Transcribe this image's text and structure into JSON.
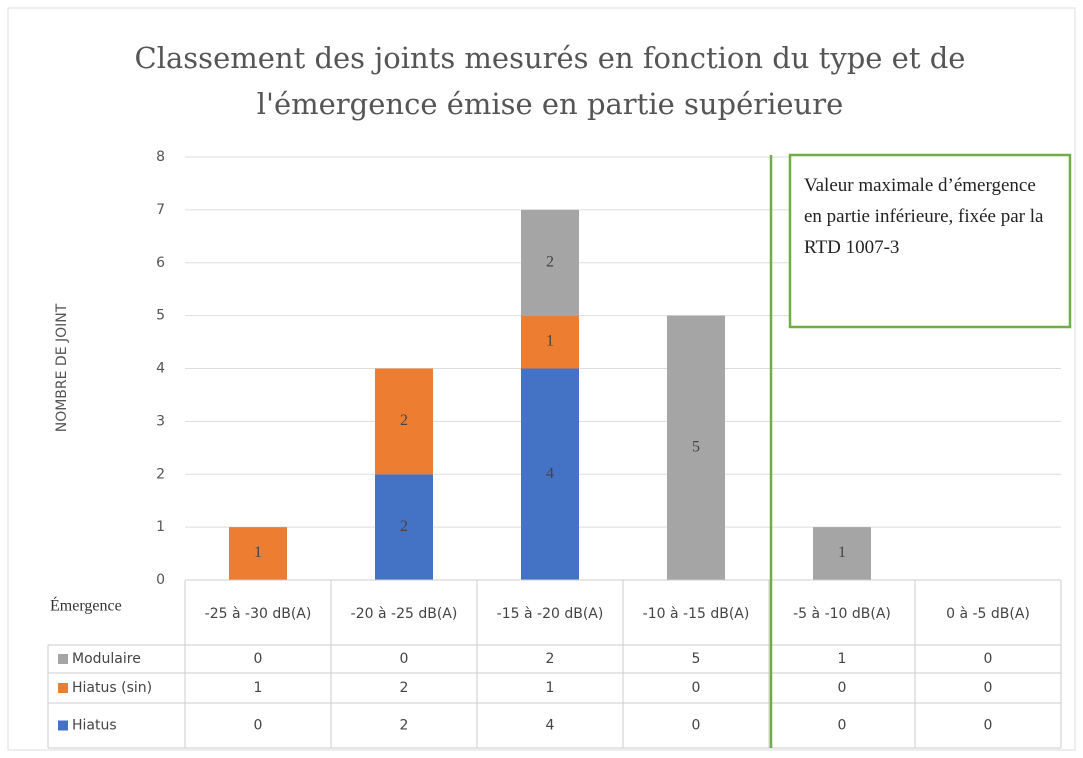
{
  "chart_data": {
    "type": "bar",
    "stacked": true,
    "title": "Classement des joints mesurés en fonction du type et de l'émergence émise en partie supérieure",
    "y_label": "NOMBRE DE JOINT",
    "table_header": "Émergence",
    "categories": [
      "-25 à -30 dB(A)",
      "-20 à -25 dB(A)",
      "-15 à -20 dB(A)",
      "-10 à -15 dB(A)",
      "-5 à -10 dB(A)",
      "0 à -5 dB(A)"
    ],
    "series": [
      {
        "name": "Hiatus",
        "color": "#4472c4",
        "values": [
          0,
          2,
          4,
          0,
          0,
          0
        ]
      },
      {
        "name": "Hiatus (sin)",
        "color": "#ed7d31",
        "values": [
          1,
          2,
          1,
          0,
          0,
          0
        ]
      },
      {
        "name": "Modulaire",
        "color": "#a5a5a5",
        "values": [
          0,
          0,
          2,
          5,
          1,
          0
        ]
      }
    ],
    "ylim": [
      0,
      8
    ],
    "yticks": [
      0,
      1,
      2,
      3,
      4,
      5,
      6,
      7,
      8
    ],
    "grid": true,
    "annotation": "Valeur maximale d’émergence en partie inférieure, fixée par la RTD 1007-3",
    "annotation_color": "#70ad47"
  }
}
